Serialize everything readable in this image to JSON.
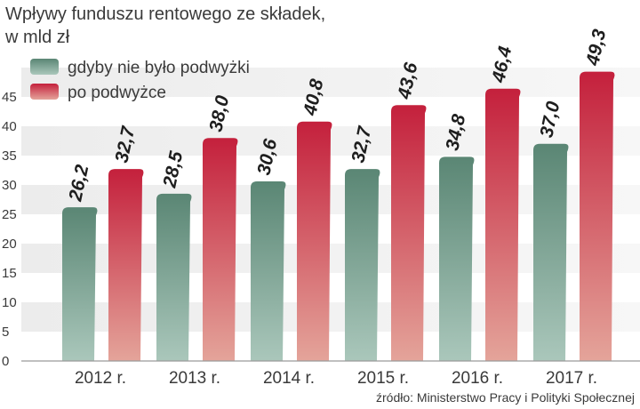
{
  "chart_data": {
    "type": "bar",
    "title": "Wpływy funduszu rentowego ze składek,",
    "subtitle": "w mld zł",
    "categories": [
      "2012 r.",
      "2013 r.",
      "2014 r.",
      "2015 r.",
      "2016 r.",
      "2017 r."
    ],
    "series": [
      {
        "name": "gdyby nie było podwyżki",
        "values": [
          26.2,
          28.5,
          30.6,
          32.7,
          34.8,
          37.0
        ],
        "labels": [
          "26,2",
          "28,5",
          "30,6",
          "32,7",
          "34,8",
          "37,0"
        ],
        "color": "#5e8a77"
      },
      {
        "name": "po podwyżce",
        "values": [
          32.7,
          38.0,
          40.8,
          43.6,
          46.4,
          49.3
        ],
        "labels": [
          "32,7",
          "38,0",
          "40,8",
          "43,6",
          "46,4",
          "49,3"
        ],
        "color": "#c6283f"
      }
    ],
    "yticks": [
      0,
      5,
      10,
      15,
      20,
      25,
      30,
      35,
      40,
      45
    ],
    "ylim": [
      0,
      50
    ],
    "grid": true,
    "legend_position": "top-left",
    "source": "źródło: Ministerstwo Pracy i Polityki Społecznej"
  }
}
